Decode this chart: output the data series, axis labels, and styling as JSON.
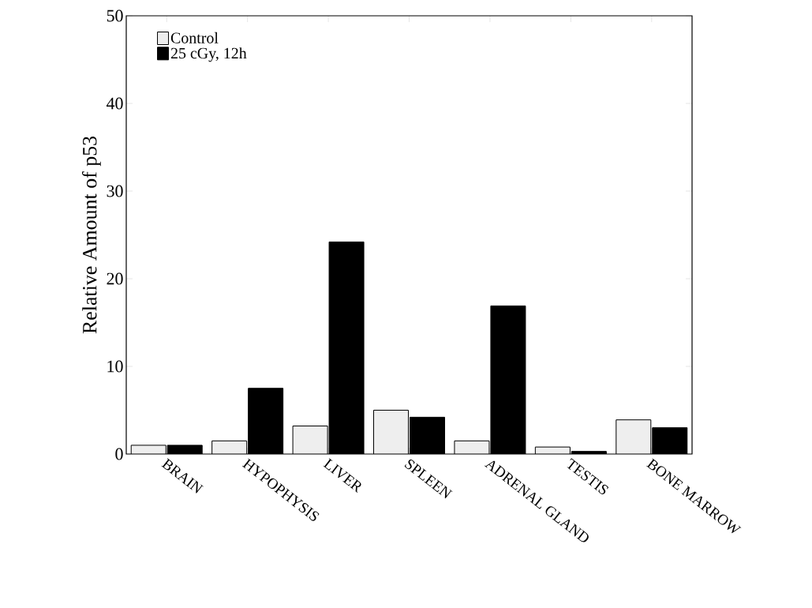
{
  "chart_data": {
    "type": "bar",
    "ylabel": "Relative Amount of p53",
    "categories": [
      "BRAIN",
      "HYPOPHYSIS",
      "LIVER",
      "SPLEEN",
      "ADRENAL GLAND",
      "TESTIS",
      "BONE MARROW"
    ],
    "series": [
      {
        "name": "Control",
        "color": "#eeeeee",
        "values": [
          1.0,
          1.5,
          3.2,
          5.0,
          1.5,
          0.8,
          3.9
        ]
      },
      {
        "name": "25 cGy, 12h",
        "color": "#000000",
        "values": [
          1.0,
          7.5,
          24.2,
          4.2,
          16.9,
          0.3,
          3.0
        ]
      }
    ],
    "ylim": [
      0,
      50
    ],
    "yticks": [
      0,
      10,
      20,
      30,
      40,
      50
    ],
    "legend": "top left",
    "grid": false
  }
}
